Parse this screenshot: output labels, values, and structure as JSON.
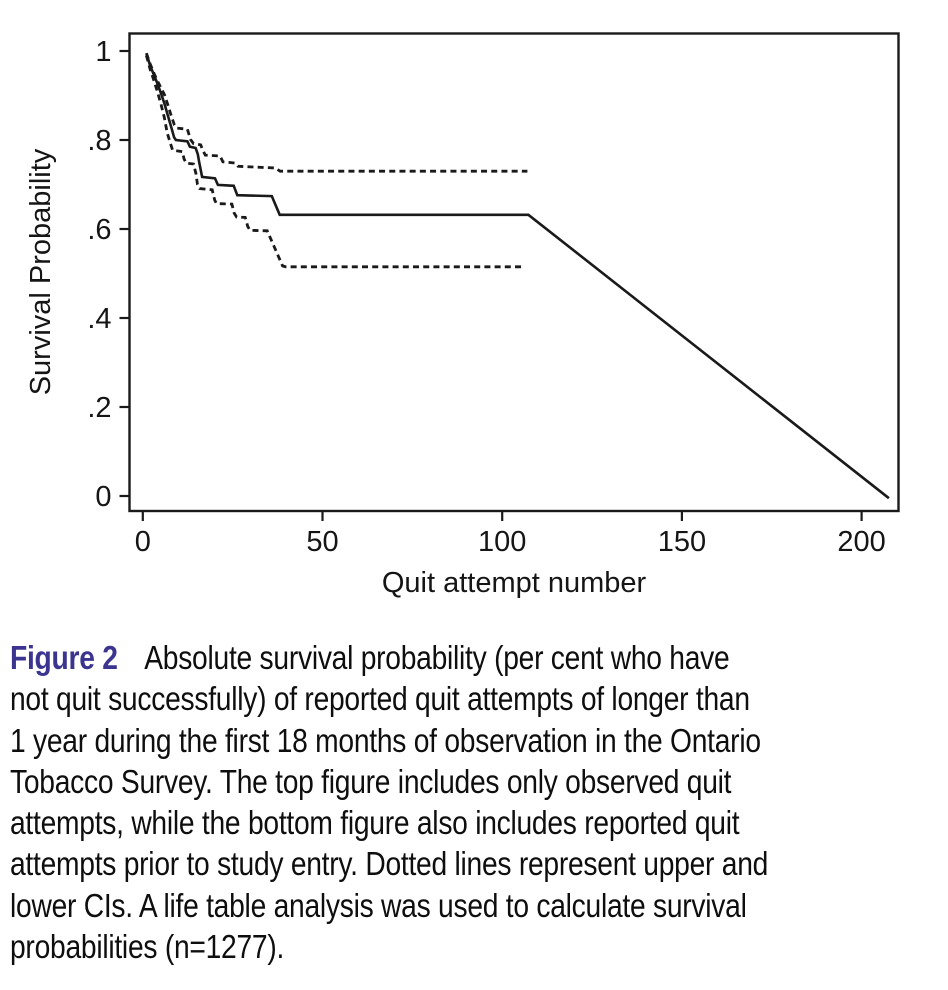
{
  "chart_data": {
    "type": "line",
    "title": "",
    "xlabel": "Quit attempt number",
    "ylabel": "Survival Probability",
    "xlim": [
      -3.7,
      210.3
    ],
    "ylim": [
      -0.035,
      1.04
    ],
    "x_ticks": [
      0,
      50,
      100,
      150,
      200
    ],
    "y_ticks": [
      {
        "v": 1,
        "label": "1"
      },
      {
        "v": 0.8,
        "label": ".8"
      },
      {
        "v": 0.6,
        "label": ".6"
      },
      {
        "v": 0.4,
        "label": ".4"
      },
      {
        "v": 0.2,
        "label": ".2"
      },
      {
        "v": 0,
        "label": "0"
      }
    ],
    "grid": false,
    "legend_position": "none",
    "line_color": "#1a1a1a",
    "series": [
      {
        "name": "survival-estimate",
        "style": "solid",
        "points": [
          [
            1,
            0.995
          ],
          [
            2,
            0.968
          ],
          [
            3,
            0.948
          ],
          [
            4,
            0.928
          ],
          [
            5,
            0.906
          ],
          [
            6,
            0.882
          ],
          [
            7,
            0.854
          ],
          [
            8,
            0.826
          ],
          [
            8.7,
            0.806
          ],
          [
            9.2,
            0.8
          ],
          [
            12.4,
            0.797
          ],
          [
            13.1,
            0.785
          ],
          [
            14.7,
            0.782
          ],
          [
            15.3,
            0.768
          ],
          [
            15.7,
            0.75
          ],
          [
            16.5,
            0.717
          ],
          [
            20.1,
            0.714
          ],
          [
            20.9,
            0.699
          ],
          [
            25.3,
            0.697
          ],
          [
            26.3,
            0.676
          ],
          [
            35.9,
            0.674
          ],
          [
            38.1,
            0.632
          ],
          [
            107.3,
            0.632
          ],
          [
            207.6,
            -0.005
          ]
        ]
      },
      {
        "name": "upper-ci",
        "style": "dashed",
        "points": [
          [
            1,
            0.995
          ],
          [
            2,
            0.972
          ],
          [
            3,
            0.952
          ],
          [
            4,
            0.934
          ],
          [
            5,
            0.918
          ],
          [
            6,
            0.902
          ],
          [
            7,
            0.878
          ],
          [
            8,
            0.852
          ],
          [
            8.8,
            0.834
          ],
          [
            9.4,
            0.827
          ],
          [
            12.4,
            0.824
          ],
          [
            13.3,
            0.801
          ],
          [
            14.1,
            0.792
          ],
          [
            16.1,
            0.789
          ],
          [
            16.7,
            0.777
          ],
          [
            17.4,
            0.766
          ],
          [
            21.5,
            0.764
          ],
          [
            22.3,
            0.751
          ],
          [
            25.7,
            0.748
          ],
          [
            26.5,
            0.741
          ],
          [
            36.9,
            0.737
          ],
          [
            38.2,
            0.73
          ],
          [
            107,
            0.73
          ]
        ]
      },
      {
        "name": "lower-ci",
        "style": "dashed",
        "points": [
          [
            1,
            0.99
          ],
          [
            2,
            0.96
          ],
          [
            3,
            0.936
          ],
          [
            4,
            0.91
          ],
          [
            5,
            0.882
          ],
          [
            6,
            0.85
          ],
          [
            6.8,
            0.816
          ],
          [
            7.7,
            0.792
          ],
          [
            8.3,
            0.777
          ],
          [
            11,
            0.774
          ],
          [
            11.5,
            0.757
          ],
          [
            12.1,
            0.748
          ],
          [
            14.1,
            0.746
          ],
          [
            14.8,
            0.724
          ],
          [
            15.2,
            0.701
          ],
          [
            15.8,
            0.691
          ],
          [
            19.3,
            0.688
          ],
          [
            20,
            0.665
          ],
          [
            20.5,
            0.657
          ],
          [
            24.8,
            0.656
          ],
          [
            25.4,
            0.636
          ],
          [
            26.1,
            0.627
          ],
          [
            28.5,
            0.626
          ],
          [
            29.2,
            0.606
          ],
          [
            29.8,
            0.597
          ],
          [
            34.6,
            0.596
          ],
          [
            38.9,
            0.517
          ],
          [
            39.8,
            0.515
          ],
          [
            106.4,
            0.515
          ]
        ]
      }
    ]
  },
  "caption": {
    "label": "Figure 2",
    "label_color": "#3b3590",
    "first_line": "Absolute survival probability (per cent who have",
    "lines": [
      "not quit successfully) of reported quit attempts of longer than",
      "1 year during the first 18 months of observation in the Ontario",
      "Tobacco Survey. The top figure includes only observed quit",
      "attempts, while the bottom figure also includes reported quit",
      "attempts prior to study entry. Dotted lines represent upper and",
      "lower CIs. A life table analysis was used to calculate survival",
      "probabilities (n=1277)."
    ]
  }
}
